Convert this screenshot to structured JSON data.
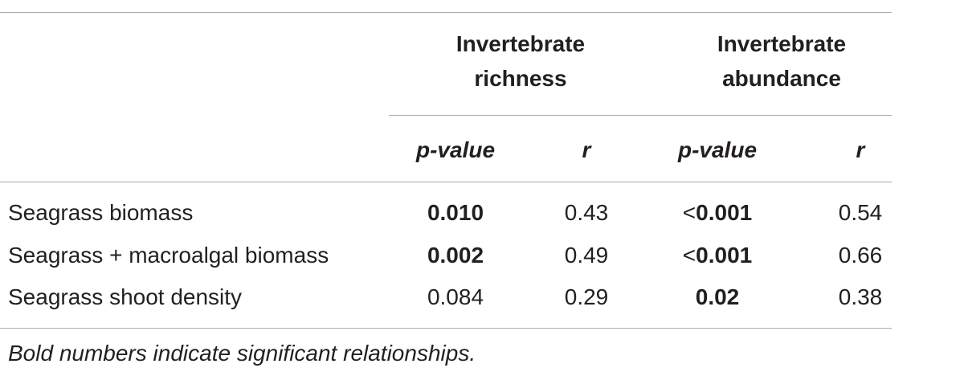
{
  "header": {
    "groups": [
      "Invertebrate richness",
      "Invertebrate abundance"
    ],
    "columns": [
      "p-value",
      "r",
      "p-value",
      "r"
    ]
  },
  "table": {
    "rows": [
      {
        "label": "Seagrass biomass",
        "cells": [
          {
            "text": "0.010",
            "bold": true
          },
          {
            "text": "0.43",
            "bold": false
          },
          {
            "prefix": "<",
            "text": "0.001",
            "bold": true
          },
          {
            "text": "0.54",
            "bold": false
          }
        ]
      },
      {
        "label": "Seagrass + macroalgal biomass",
        "cells": [
          {
            "text": "0.002",
            "bold": true
          },
          {
            "text": "0.49",
            "bold": false
          },
          {
            "prefix": "<",
            "text": "0.001",
            "bold": true
          },
          {
            "text": "0.66",
            "bold": false
          }
        ]
      },
      {
        "label": "Seagrass shoot density",
        "cells": [
          {
            "text": "0.084",
            "bold": false
          },
          {
            "text": "0.29",
            "bold": false
          },
          {
            "text": "0.02",
            "bold": true
          },
          {
            "text": "0.38",
            "bold": false
          }
        ]
      }
    ]
  },
  "footnote": "Bold numbers indicate significant relationships."
}
